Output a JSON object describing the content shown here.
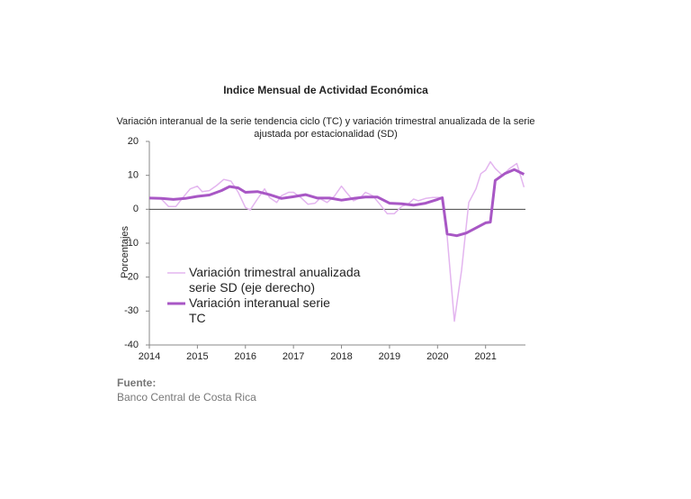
{
  "chart_data": {
    "type": "line",
    "title": "Indice Mensual de  Actividad Económica",
    "subtitle": [
      "Variación interanual de la serie tendencia ciclo (TC) y variación trimestral anualizada de la serie",
      "ajustada por estacionalidad (SD)"
    ],
    "y_label": "Porcentajes",
    "xlim": [
      2014,
      2021.83
    ],
    "xticks": [
      2014,
      2015,
      2016,
      2017,
      2018,
      2019,
      2020,
      2021
    ],
    "ylim": [
      -40,
      20
    ],
    "yticks": [
      -40,
      -30,
      -20,
      -10,
      0,
      10,
      20
    ],
    "series": [
      {
        "name": "Variación trimestral anualizada serie SD (eje derecho)",
        "color": "#e3b5ef",
        "width": 1.5,
        "x": [
          2014.0,
          2014.25,
          2014.4,
          2014.55,
          2014.7,
          2014.85,
          2015.0,
          2015.1,
          2015.25,
          2015.4,
          2015.55,
          2015.7,
          2015.85,
          2016.0,
          2016.1,
          2016.25,
          2016.4,
          2016.5,
          2016.65,
          2016.75,
          2016.9,
          2017.0,
          2017.15,
          2017.3,
          2017.45,
          2017.55,
          2017.7,
          2017.85,
          2018.0,
          2018.1,
          2018.25,
          2018.4,
          2018.5,
          2018.65,
          2018.8,
          2018.95,
          2019.1,
          2019.25,
          2019.4,
          2019.5,
          2019.6,
          2019.75,
          2019.9,
          2020.1,
          2020.2,
          2020.35,
          2020.5,
          2020.65,
          2020.8,
          2020.9,
          2021.0,
          2021.1,
          2021.2,
          2021.35,
          2021.5,
          2021.65,
          2021.8
        ],
        "values": [
          3.5,
          3,
          0.8,
          0.8,
          3.5,
          6,
          6.8,
          5.2,
          5.5,
          7,
          8.8,
          8.3,
          5,
          0.5,
          -0.2,
          3,
          6,
          3.5,
          2,
          4,
          5,
          5,
          3.5,
          1.5,
          1.8,
          3.2,
          2,
          3.8,
          6.8,
          5,
          2.5,
          3.5,
          5,
          4,
          1.5,
          -1.3,
          -1.3,
          0.8,
          1.7,
          3,
          2.5,
          3.2,
          3.5,
          3.5,
          -8,
          -33,
          -18,
          2,
          6,
          10.5,
          11.5,
          14,
          12,
          10,
          12,
          13.5,
          6.5
        ]
      },
      {
        "name": "Variación interanual serie TC",
        "color": "#a857c5",
        "width": 3,
        "x": [
          2014.0,
          2014.25,
          2014.5,
          2014.75,
          2015.0,
          2015.25,
          2015.5,
          2015.67,
          2015.85,
          2016.0,
          2016.25,
          2016.5,
          2016.75,
          2017.0,
          2017.25,
          2017.5,
          2017.75,
          2018.0,
          2018.25,
          2018.5,
          2018.75,
          2019.0,
          2019.25,
          2019.5,
          2019.75,
          2020.0,
          2020.1,
          2020.2,
          2020.4,
          2020.6,
          2020.8,
          2021.0,
          2021.1,
          2021.2,
          2021.4,
          2021.6,
          2021.8
        ],
        "values": [
          3.3,
          3.2,
          2.9,
          3.2,
          3.8,
          4.2,
          5.5,
          6.7,
          6.3,
          5.0,
          5.2,
          4.3,
          3.2,
          3.7,
          4.3,
          3.3,
          3.3,
          2.7,
          3.2,
          3.6,
          3.6,
          1.8,
          1.6,
          1.2,
          1.8,
          2.9,
          3.4,
          -7.3,
          -7.8,
          -7.0,
          -5.5,
          -4.0,
          -3.8,
          8.5,
          10.5,
          11.7,
          10.3
        ]
      }
    ],
    "source_label": "Fuente:",
    "source": "Banco Central de Costa Rica"
  }
}
